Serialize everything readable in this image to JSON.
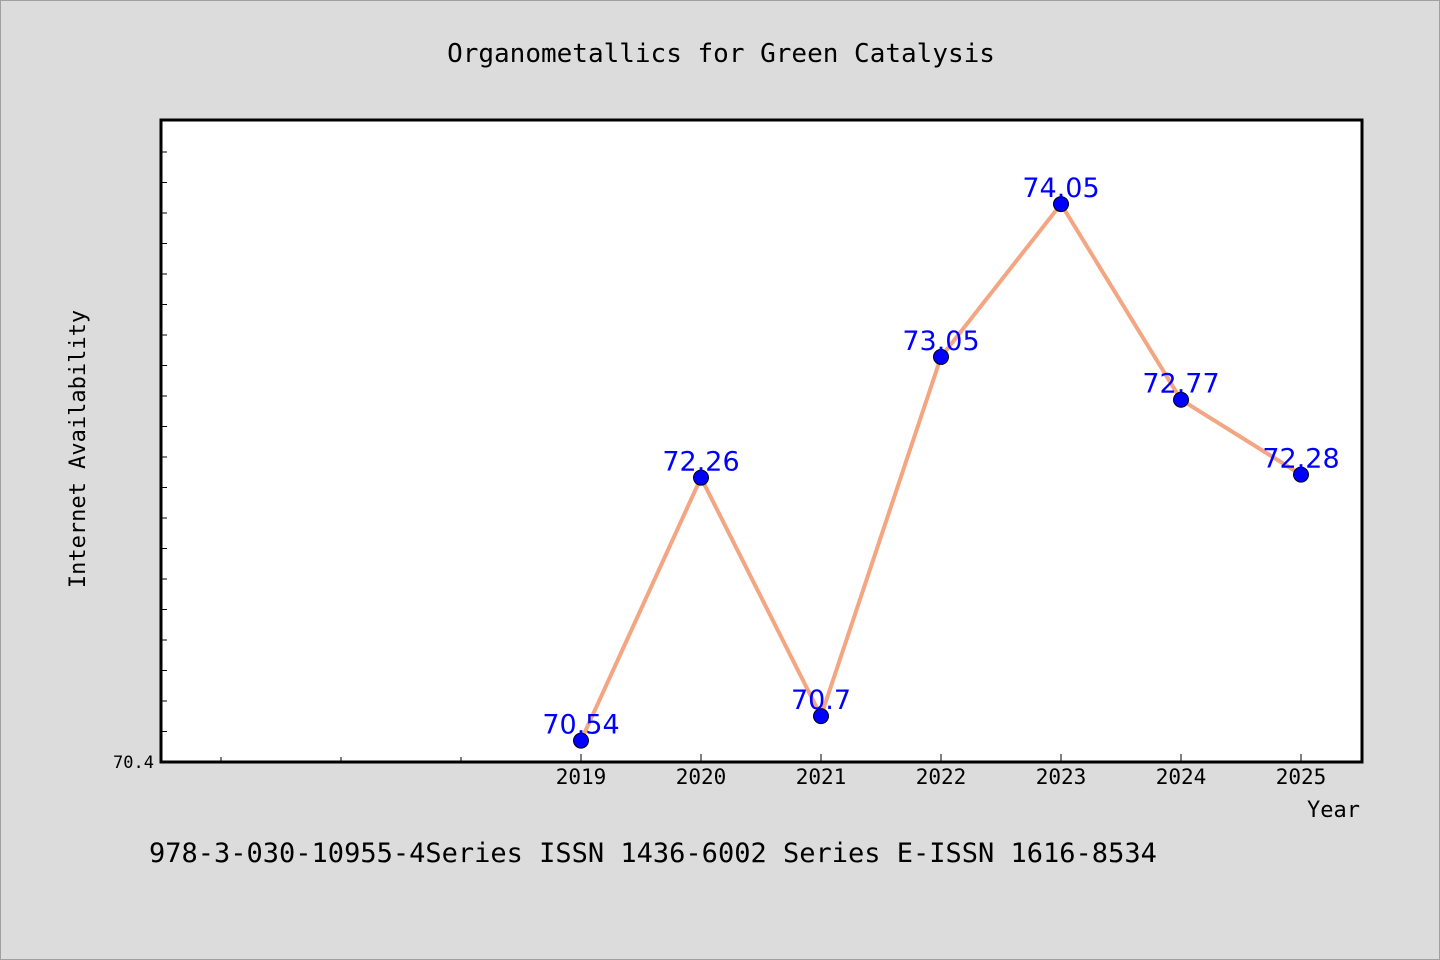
{
  "chart_data": {
    "type": "line",
    "title": "Organometallics for Green Catalysis",
    "xlabel": "Year",
    "ylabel": "Internet Availability",
    "categories": [
      "2019",
      "2020",
      "2021",
      "2022",
      "2023",
      "2024",
      "2025"
    ],
    "series": [
      {
        "values": [
          70.54,
          72.26,
          70.7,
          73.05,
          74.05,
          72.77,
          72.28
        ],
        "labels": [
          "70.54",
          "72.26",
          "70.7",
          "73.05",
          "74.05",
          "72.77",
          "72.28"
        ]
      }
    ],
    "y_tick_labels": [
      "70.4"
    ],
    "ylim": [
      70.4,
      74.6
    ],
    "grid": false,
    "line_color": "#f4a582",
    "marker_color": "#0000ff",
    "label_color": "#0000ff",
    "plot_background": "#ffffff",
    "page_background": "#dcdcdc"
  },
  "footer": {
    "text": "978-3-030-10955-4Series ISSN 1436-6002 Series E-ISSN 1616-8534"
  }
}
